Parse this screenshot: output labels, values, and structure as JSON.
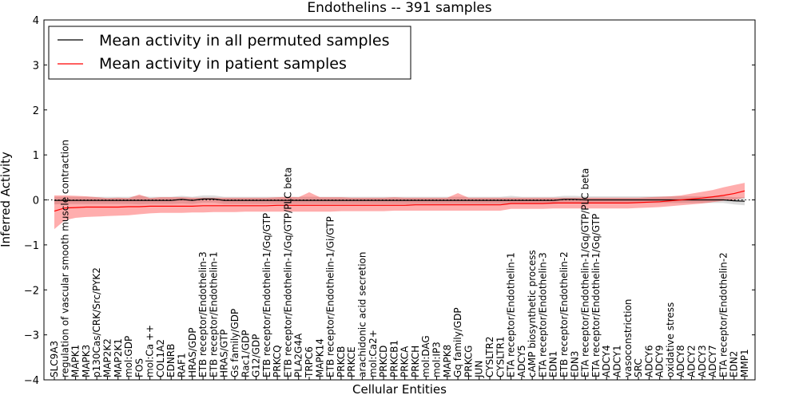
{
  "chart_data": {
    "type": "line",
    "title": "Endothelins -- 391 samples",
    "xlabel": "Cellular Entities",
    "ylabel": "Inferred Activity",
    "ylim": [
      -4,
      4
    ],
    "yticks": [
      4,
      3,
      2,
      1,
      0,
      -1,
      -2,
      -3,
      -4
    ],
    "zero_line": true,
    "legend": {
      "placement": "top-left",
      "entries": [
        {
          "label": "Mean activity in all permuted samples",
          "color": "#000000"
        },
        {
          "label": "Mean activity in patient samples",
          "color": "#ff0000"
        }
      ]
    },
    "entities": [
      "SLC9A3",
      "regulation of vascular smooth muscle contraction",
      "MAPK1",
      "MAPK3",
      "p130Cas/CRK/Src/PYK2",
      "MAP2K2",
      "MAP2K1",
      "mol:GDP",
      "FOS",
      "mol:Ca ++",
      "COL1A2",
      "EDNRB",
      "RAF1",
      "HRAS/GDP",
      "ETB receptor/Endothelin-3",
      "ETB receptor/Endothelin-1",
      "HRAS/GTP",
      "Gs family/GDP",
      "Rac1/GDP",
      "G12/GDP",
      "ETB receptor/Endothelin-1/Gq/GTP",
      "PRKCQ",
      "ETB receptor/Endothelin-1/Gq/GTP/PLC beta",
      "PLA2G4A",
      "TRPC6",
      "MAPK14",
      "ETB receptor/Endothelin-1/Gi/GTP",
      "PRKCB",
      "PRKCE",
      "arachidonic acid secretion",
      "mol:Ca2+",
      "PRKCD",
      "PRKCB1",
      "PRKCA",
      "PRKCH",
      "mol:DAG",
      "mol:IP3",
      "MAPK8",
      "Gq family/GDP",
      "PRKCG",
      "JUN",
      "CYSLTR2",
      "CYSLTR1",
      "ETA receptor/Endothelin-1",
      "ADCY5",
      "cAMP biosynthetic process",
      "ETA receptor/Endothelin-3",
      "EDN1",
      "ETB receptor/Endothelin-2",
      "EDN3",
      "ETA receptor/Endothelin-1/Gq/GTP/PLC beta",
      "ETA receptor/Endothelin-1/Gq/GTP",
      "ADCY4",
      "ADCY1",
      "vasoconstriction",
      "SRC",
      "ADCY6",
      "ADCY9",
      "oxidative stress",
      "ADCY8",
      "ADCY2",
      "ADCY3",
      "ADCY7",
      "ETA receptor/Endothelin-2",
      "EDN2",
      "MMP1"
    ],
    "series": [
      {
        "name": "Mean activity in all permuted samples",
        "color": "#000000",
        "values": [
          -0.01,
          -0.01,
          -0.01,
          -0.01,
          -0.01,
          -0.01,
          -0.01,
          -0.01,
          -0.01,
          -0.01,
          -0.01,
          -0.01,
          0.01,
          -0.01,
          0.02,
          0.02,
          -0.01,
          -0.01,
          -0.01,
          -0.01,
          -0.01,
          -0.01,
          -0.01,
          -0.01,
          -0.01,
          -0.01,
          -0.01,
          -0.01,
          -0.01,
          -0.01,
          -0.01,
          -0.01,
          -0.01,
          -0.01,
          -0.01,
          -0.01,
          -0.01,
          -0.01,
          -0.01,
          -0.01,
          -0.01,
          -0.01,
          -0.01,
          -0.01,
          -0.01,
          -0.01,
          -0.01,
          -0.01,
          0.01,
          0.01,
          0.0,
          0.0,
          0.0,
          0.0,
          0.0,
          0.0,
          0.0,
          0.0,
          0.0,
          0.0,
          0.0,
          0.0,
          0.0,
          0.0,
          -0.02,
          -0.03
        ],
        "band_lower": [
          -0.1,
          -0.09,
          -0.09,
          -0.09,
          -0.09,
          -0.09,
          -0.09,
          -0.09,
          -0.1,
          -0.09,
          -0.09,
          -0.09,
          -0.08,
          -0.09,
          -0.06,
          -0.06,
          -0.09,
          -0.09,
          -0.09,
          -0.09,
          -0.09,
          -0.09,
          -0.09,
          -0.09,
          -0.09,
          -0.09,
          -0.09,
          -0.09,
          -0.09,
          -0.09,
          -0.09,
          -0.09,
          -0.09,
          -0.09,
          -0.09,
          -0.09,
          -0.09,
          -0.09,
          -0.09,
          -0.09,
          -0.09,
          -0.09,
          -0.09,
          -0.09,
          -0.09,
          -0.09,
          -0.09,
          -0.09,
          -0.07,
          -0.07,
          -0.07,
          -0.07,
          -0.07,
          -0.07,
          -0.07,
          -0.07,
          -0.07,
          -0.07,
          -0.07,
          -0.07,
          -0.07,
          -0.07,
          -0.07,
          -0.07,
          -0.1,
          -0.12
        ],
        "band_upper": [
          0.07,
          0.07,
          0.07,
          0.07,
          0.07,
          0.07,
          0.07,
          0.07,
          0.09,
          0.07,
          0.07,
          0.07,
          0.09,
          0.07,
          0.1,
          0.1,
          0.07,
          0.07,
          0.07,
          0.07,
          0.07,
          0.07,
          0.07,
          0.07,
          0.07,
          0.07,
          0.07,
          0.07,
          0.07,
          0.07,
          0.07,
          0.07,
          0.07,
          0.07,
          0.07,
          0.07,
          0.07,
          0.07,
          0.07,
          0.07,
          0.07,
          0.07,
          0.07,
          0.09,
          0.07,
          0.07,
          0.07,
          0.07,
          0.09,
          0.09,
          0.08,
          0.08,
          0.08,
          0.08,
          0.08,
          0.08,
          0.08,
          0.08,
          0.08,
          0.08,
          0.08,
          0.08,
          0.08,
          0.08,
          0.06,
          0.06
        ]
      },
      {
        "name": "Mean activity in patient samples",
        "color": "#ff0000",
        "values": [
          -0.25,
          -0.18,
          -0.17,
          -0.16,
          -0.16,
          -0.16,
          -0.16,
          -0.15,
          -0.15,
          -0.14,
          -0.14,
          -0.14,
          -0.14,
          -0.14,
          -0.13,
          -0.13,
          -0.13,
          -0.13,
          -0.13,
          -0.13,
          -0.13,
          -0.12,
          -0.12,
          -0.12,
          -0.12,
          -0.12,
          -0.12,
          -0.12,
          -0.12,
          -0.12,
          -0.12,
          -0.12,
          -0.12,
          -0.12,
          -0.11,
          -0.11,
          -0.11,
          -0.11,
          -0.11,
          -0.11,
          -0.11,
          -0.11,
          -0.11,
          -0.08,
          -0.08,
          -0.08,
          -0.08,
          -0.07,
          -0.07,
          -0.07,
          -0.07,
          -0.07,
          -0.07,
          -0.07,
          -0.07,
          -0.06,
          -0.05,
          -0.04,
          -0.02,
          0.0,
          0.02,
          0.04,
          0.07,
          0.1,
          0.14,
          0.2
        ],
        "band_lower": [
          -0.65,
          -0.45,
          -0.4,
          -0.38,
          -0.37,
          -0.36,
          -0.35,
          -0.34,
          -0.32,
          -0.3,
          -0.29,
          -0.29,
          -0.29,
          -0.28,
          -0.28,
          -0.27,
          -0.27,
          -0.27,
          -0.26,
          -0.26,
          -0.26,
          -0.26,
          -0.26,
          -0.26,
          -0.26,
          -0.26,
          -0.26,
          -0.25,
          -0.25,
          -0.25,
          -0.25,
          -0.25,
          -0.24,
          -0.24,
          -0.24,
          -0.24,
          -0.24,
          -0.24,
          -0.24,
          -0.24,
          -0.24,
          -0.24,
          -0.24,
          -0.2,
          -0.2,
          -0.2,
          -0.2,
          -0.19,
          -0.19,
          -0.19,
          -0.19,
          -0.19,
          -0.19,
          -0.19,
          -0.19,
          -0.18,
          -0.17,
          -0.16,
          -0.14,
          -0.12,
          -0.1,
          -0.08,
          -0.05,
          -0.02,
          0.0,
          0.05
        ],
        "band_upper": [
          0.1,
          0.1,
          0.09,
          0.08,
          0.06,
          0.04,
          0.05,
          0.04,
          0.12,
          0.04,
          0.06,
          0.06,
          0.06,
          0.05,
          0.05,
          0.05,
          0.05,
          0.05,
          0.05,
          0.05,
          0.05,
          0.06,
          0.07,
          0.06,
          0.17,
          0.06,
          0.06,
          0.06,
          0.05,
          0.05,
          0.05,
          0.05,
          0.06,
          0.05,
          0.05,
          0.05,
          0.05,
          0.05,
          0.15,
          0.05,
          0.05,
          0.05,
          0.05,
          0.05,
          0.05,
          0.05,
          0.05,
          0.05,
          0.05,
          0.05,
          0.05,
          0.05,
          0.05,
          0.05,
          0.05,
          0.05,
          0.06,
          0.07,
          0.08,
          0.1,
          0.14,
          0.18,
          0.22,
          0.28,
          0.33,
          0.38
        ]
      }
    ]
  }
}
